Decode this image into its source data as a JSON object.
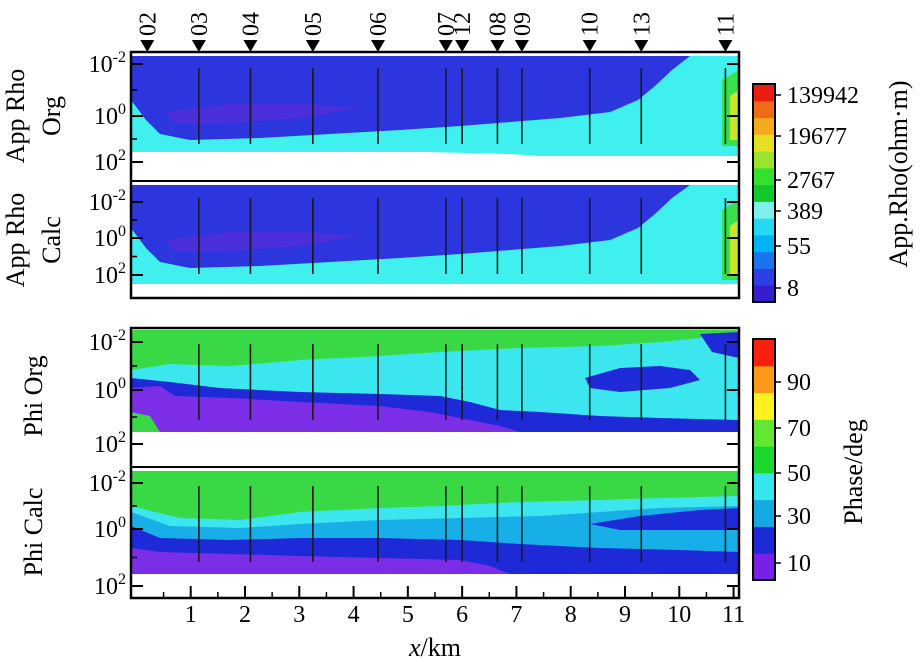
{
  "chart_data": [
    {
      "type": "heatmap",
      "panel": "App Rho Org",
      "ylabel_lines": [
        "App Rho",
        "Org"
      ],
      "y_ticks": [
        {
          "base": "10",
          "exp": "-2"
        },
        {
          "base": "10",
          "exp": "0"
        },
        {
          "base": "10",
          "exp": "2"
        }
      ],
      "y_scale": "log",
      "ylim": [
        100,
        0.003
      ]
    },
    {
      "type": "heatmap",
      "panel": "App Rho Calc",
      "ylabel_lines": [
        "App Rho",
        "Calc"
      ],
      "y_ticks": [
        {
          "base": "10",
          "exp": "-2"
        },
        {
          "base": "10",
          "exp": "0"
        },
        {
          "base": "10",
          "exp": "2"
        }
      ],
      "y_scale": "log",
      "ylim": [
        100,
        0.003
      ]
    },
    {
      "type": "heatmap",
      "panel": "Phi Org",
      "ylabel_lines": [
        "Phi Org"
      ],
      "y_ticks": [
        {
          "base": "10",
          "exp": "-2"
        },
        {
          "base": "10",
          "exp": "0"
        },
        {
          "base": "10",
          "exp": "2"
        }
      ],
      "y_scale": "log",
      "ylim": [
        100,
        0.003
      ]
    },
    {
      "type": "heatmap",
      "panel": "Phi Calc",
      "ylabel_lines": [
        "Phi Calc"
      ],
      "y_ticks": [
        {
          "base": "10",
          "exp": "-2"
        },
        {
          "base": "10",
          "exp": "0"
        },
        {
          "base": "10",
          "exp": "2"
        }
      ],
      "y_scale": "log",
      "ylim": [
        100,
        0.003
      ]
    }
  ],
  "x_axis": {
    "label_italic": "x",
    "label_rest": "/km",
    "ticks": [
      "1",
      "2",
      "3",
      "4",
      "5",
      "6",
      "7",
      "8",
      "9",
      "10",
      "11"
    ],
    "xlim": [
      -0.1,
      11.1
    ]
  },
  "stations": [
    {
      "label": "02",
      "x": 0.2
    },
    {
      "label": "03",
      "x": 1.15
    },
    {
      "label": "04",
      "x": 2.1
    },
    {
      "label": "05",
      "x": 3.25
    },
    {
      "label": "06",
      "x": 4.45
    },
    {
      "label": "07",
      "x": 5.7
    },
    {
      "label": "12",
      "x": 6.0
    },
    {
      "label": "08",
      "x": 6.65
    },
    {
      "label": "09",
      "x": 7.1
    },
    {
      "label": "10",
      "x": 8.35
    },
    {
      "label": "13",
      "x": 9.3
    },
    {
      "label": "11",
      "x": 10.85
    }
  ],
  "colorbar_rho": {
    "label": "App.Rho(ohm·m)",
    "ticks": [
      "139942",
      "19677",
      "2767",
      "389",
      "55",
      "8"
    ],
    "colors": [
      "#3a1cd0",
      "#2c3fe0",
      "#1a73ef",
      "#00b4f2",
      "#25d9f5",
      "#7ff0ec",
      "#12c82a",
      "#35e030",
      "#9de32a",
      "#e6e022",
      "#f4a91e",
      "#f06a18",
      "#ea1d12"
    ]
  },
  "colorbar_phase": {
    "label": "Phase/deg",
    "ticks": [
      "90",
      "70",
      "50",
      "30",
      "10"
    ],
    "colors": [
      "#7a1fe8",
      "#1e2ad8",
      "#16a8e0",
      "#35e6ee",
      "#1cd82c",
      "#62e832",
      "#fff020",
      "#fa9a18",
      "#fa2010"
    ]
  },
  "fill_colors": {
    "rho_base": "#2d35de",
    "rho_deep": "#4a2fdb",
    "rho_high": "#3ff0ee",
    "phi_low": "#7b2ee6",
    "phi_mid": "#1e2ad8",
    "phi_cyan": "#3ce6ee",
    "phi_green": "#39d946"
  }
}
